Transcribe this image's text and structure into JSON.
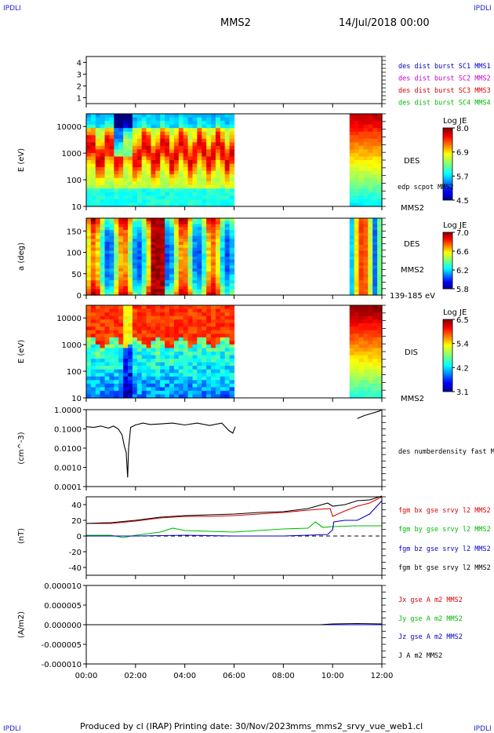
{
  "header": {
    "corner_tl": "IPDLI",
    "corner_tr": "IPDLI",
    "corner_bl": "IPDLI",
    "corner_br": "IPDLI",
    "spacecraft": "MMS2",
    "date": "14/Jul/2018 00:00"
  },
  "footer": {
    "produced_by": "Produced by cl (IRAP)",
    "printing_date": "Printing date: 30/Nov/2023",
    "script_name": "mms_mms2_srvy_vue_web1.cl"
  },
  "colors": {
    "blue": "#0000cc",
    "magenta": "#cc00cc",
    "red": "#dd0000",
    "green": "#00bb00",
    "black": "#000000"
  },
  "chart_data": [
    {
      "type": "line",
      "panel": "spacecraft-position",
      "ylim": [
        0.5,
        4.5
      ],
      "yticks": [
        1,
        2,
        3,
        4
      ],
      "tick_labels": [
        "1",
        "2",
        "3",
        "4"
      ],
      "legend": [
        {
          "label": "des dist burst SC1 MMS1",
          "color": "#0000cc"
        },
        {
          "label": "des dist burst SC2 MMS2",
          "color": "#cc00cc"
        },
        {
          "label": "des dist burst SC3 MMS3",
          "color": "#dd0000"
        },
        {
          "label": "des dist burst SC4 MMS4",
          "color": "#00bb00"
        }
      ]
    },
    {
      "type": "heatmap",
      "panel": "des-energy",
      "ylabel": "E (eV)",
      "yscale": "log",
      "ylim": [
        10,
        30000
      ],
      "tick_labels": [
        "10",
        "100",
        "1000",
        "10000"
      ],
      "right_labels": [
        "DES",
        "edp scpot MMS2",
        "MMS2"
      ],
      "colorbar": {
        "title": "Log JE",
        "min": 4.5,
        "max": 8.0,
        "ticks": [
          "8.0",
          "6.9",
          "5.7",
          "4.5"
        ]
      },
      "data_gap_hours": [
        6.0,
        10.7
      ]
    },
    {
      "type": "heatmap",
      "panel": "des-pitch-angle",
      "ylabel": "a (deg)",
      "ylim": [
        0,
        180
      ],
      "tick_labels": [
        "0",
        "50",
        "100",
        "150"
      ],
      "right_labels": [
        "DES",
        "MMS2",
        "139-185 eV"
      ],
      "colorbar": {
        "title": "Log JE",
        "min": 5.8,
        "max": 7.0,
        "ticks": [
          "7.0",
          "6.6",
          "6.2",
          "5.8"
        ]
      },
      "data_gap_hours": [
        6.0,
        10.7
      ]
    },
    {
      "type": "heatmap",
      "panel": "dis-energy",
      "ylabel": "E (eV)",
      "yscale": "log",
      "ylim": [
        10,
        30000
      ],
      "tick_labels": [
        "10",
        "100",
        "1000",
        "10000"
      ],
      "right_labels": [
        "DIS",
        "MMS2"
      ],
      "colorbar": {
        "title": "Log JE",
        "min": 3.1,
        "max": 6.5,
        "ticks": [
          "6.5",
          "5.4",
          "4.2",
          "3.1"
        ]
      },
      "data_gap_hours": [
        6.0,
        10.7
      ]
    },
    {
      "type": "line",
      "panel": "density",
      "ylabel": "(cm^-3)",
      "yscale": "log",
      "ylim": [
        0.0001,
        1.0
      ],
      "tick_labels": [
        "0.0001",
        "0.0010",
        "0.0100",
        "0.1000",
        "1.0000"
      ],
      "series": [
        {
          "name": "des numberdensity fast M",
          "color": "#000000",
          "x": [
            0.0,
            0.3,
            0.6,
            0.9,
            1.1,
            1.3,
            1.45,
            1.55,
            1.62,
            1.68,
            1.72,
            1.8,
            2.0,
            2.3,
            2.6,
            3.0,
            3.5,
            4.0,
            4.5,
            5.0,
            5.5,
            5.8,
            5.95,
            6.05
          ],
          "y": [
            0.13,
            0.12,
            0.14,
            0.11,
            0.14,
            0.1,
            0.05,
            0.012,
            0.006,
            0.0003,
            0.01,
            0.12,
            0.16,
            0.2,
            0.17,
            0.18,
            0.2,
            0.16,
            0.2,
            0.15,
            0.2,
            0.08,
            0.06,
            0.13
          ]
        },
        {
          "name": "des numberdensity fast M",
          "color": "#000000",
          "x": [
            11.0,
            11.3,
            11.6,
            11.9,
            12.0
          ],
          "y": [
            0.35,
            0.5,
            0.65,
            0.85,
            1.0
          ]
        }
      ]
    },
    {
      "type": "line",
      "panel": "magnetic-field",
      "ylabel": "(nT)",
      "ylim": [
        -50,
        50
      ],
      "tick_labels": [
        "-40",
        "-20",
        "0",
        "20",
        "40"
      ],
      "series": [
        {
          "name": "fgm bx gse srvy l2 MMS2",
          "color": "#dd0000",
          "x": [
            0,
            1,
            2,
            3,
            4,
            5,
            6,
            7,
            8,
            9,
            9.9,
            10.0,
            10.5,
            11,
            11.5,
            12
          ],
          "y": [
            16,
            16,
            19,
            23,
            25,
            25,
            26,
            28,
            30,
            33,
            35,
            25,
            32,
            38,
            42,
            50
          ]
        },
        {
          "name": "fgm by gse srvy l2 MMS2",
          "color": "#00bb00",
          "x": [
            0,
            1,
            1.5,
            2,
            3,
            3.5,
            4,
            5,
            6,
            7,
            8,
            9,
            9.3,
            9.6,
            10,
            11,
            12
          ],
          "y": [
            1,
            1,
            -2,
            1,
            5,
            10,
            7,
            6,
            5,
            7,
            9,
            10,
            18,
            11,
            12,
            13,
            13
          ]
        },
        {
          "name": "fgm bz gse srvy l2 MMS2",
          "color": "#0000cc",
          "x": [
            0,
            2,
            4,
            6,
            8,
            9,
            9.8,
            10.0,
            10.05,
            10.5,
            11,
            11.5,
            12
          ],
          "y": [
            0,
            0,
            1,
            0,
            0,
            1,
            2,
            8,
            18,
            20,
            20,
            28,
            45
          ]
        },
        {
          "name": "fgm bt gse srvy l2 MMS2",
          "color": "#000000",
          "x": [
            0,
            1,
            2,
            3,
            4,
            5,
            6,
            7,
            8,
            9,
            9.8,
            10,
            10.5,
            11,
            11.5,
            12
          ],
          "y": [
            16,
            17,
            20,
            24,
            26,
            27,
            28,
            30,
            31,
            35,
            42,
            38,
            40,
            45,
            46,
            51
          ]
        }
      ]
    },
    {
      "type": "line",
      "panel": "current-density",
      "ylabel": "(A/m2)",
      "ylim": [
        -1e-05,
        1e-05
      ],
      "tick_labels": [
        "-0.000010",
        "-0.000005",
        "0.000000",
        "0.000005",
        "0.000010"
      ],
      "series": [
        {
          "name": "Jx gse A m2 MMS2",
          "color": "#dd0000",
          "x": [
            0,
            12
          ],
          "y": [
            0,
            0
          ]
        },
        {
          "name": "Jy gse A m2 MMS2",
          "color": "#00bb00",
          "x": [
            0,
            12
          ],
          "y": [
            0,
            0
          ]
        },
        {
          "name": "Jz gse A m2 MMS2",
          "color": "#0000cc",
          "x": [
            0,
            12
          ],
          "y": [
            0,
            0
          ]
        },
        {
          "name": "J A m2 MMS2",
          "color": "#000000",
          "x": [
            0,
            9.5,
            10,
            11,
            12
          ],
          "y": [
            0,
            0,
            2e-07,
            3e-07,
            2e-07
          ]
        }
      ]
    }
  ],
  "time_axis": {
    "tick_labels": [
      "00:00",
      "02:00",
      "04:00",
      "06:00",
      "08:00",
      "10:00",
      "12:00"
    ],
    "xlim_hours": [
      0,
      12
    ]
  }
}
